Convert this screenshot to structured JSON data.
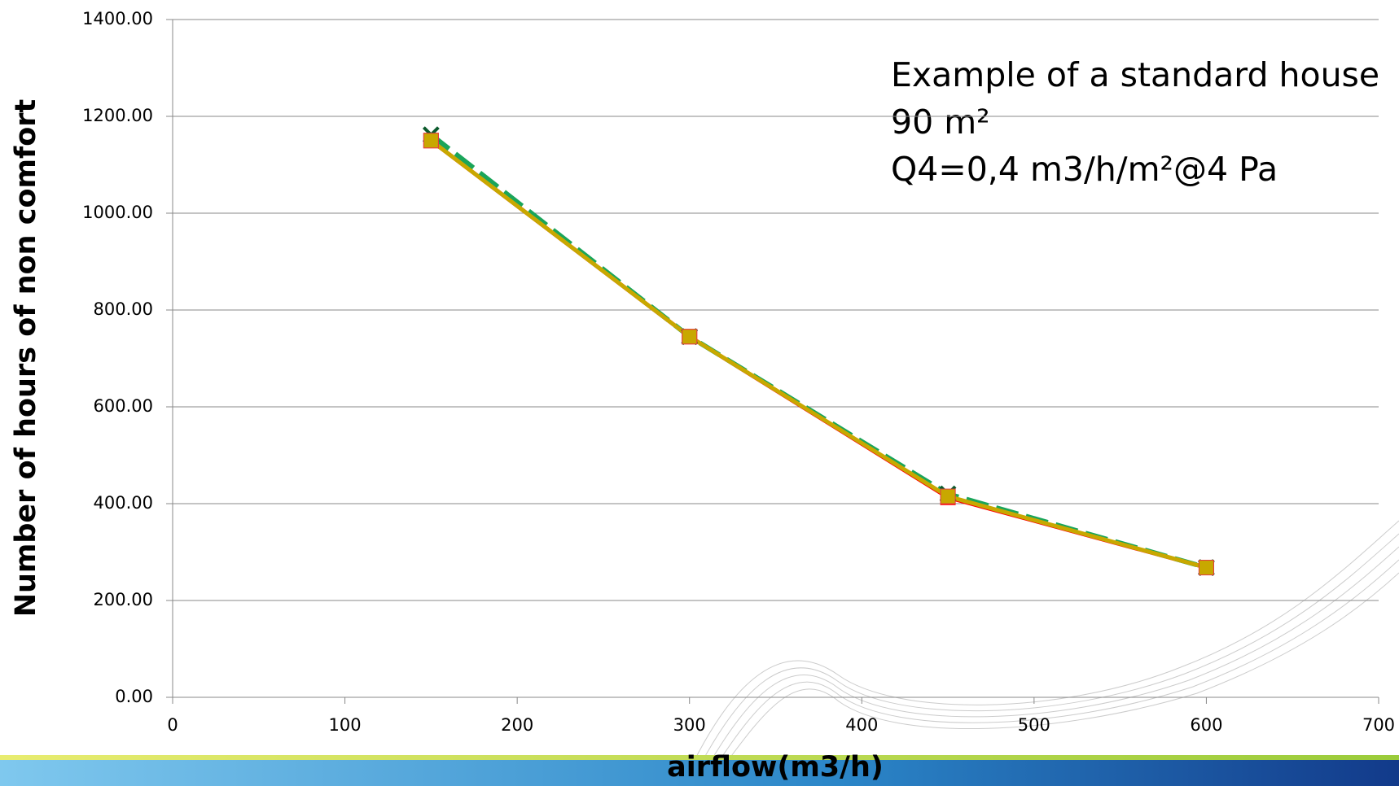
{
  "chart_data": {
    "type": "line",
    "x_label": "airflow(m3/h)",
    "y_label": "Number of hours of non comfort",
    "annotations": [
      "Example of a standard house",
      "90 m²",
      "Q4=0,4 m3/h/m²@4 Pa"
    ],
    "x": [
      150,
      300,
      450,
      600
    ],
    "series": [
      {
        "color": "#ff0000",
        "values": [
          1150,
          745,
          413,
          268
        ]
      },
      {
        "color": "#1aa55a",
        "values": [
          1162,
          745,
          420,
          268
        ]
      },
      {
        "color": "#c8a800",
        "values": [
          1150,
          745,
          415,
          268
        ]
      }
    ],
    "xlim": [
      0,
      700
    ],
    "xticks": [
      0,
      100,
      200,
      300,
      400,
      500,
      600,
      700
    ],
    "ylim": [
      0,
      1400
    ],
    "yticks": [
      {
        "value": 0,
        "label": "0.00"
      },
      {
        "value": 200,
        "label": "200.00"
      },
      {
        "value": 400,
        "label": "400.00"
      },
      {
        "value": 600,
        "label": "600.00"
      },
      {
        "value": 800,
        "label": "800.00"
      },
      {
        "value": 1000,
        "label": "1000.00"
      },
      {
        "value": 1200,
        "label": "1200.00"
      },
      {
        "value": 1400,
        "label": "1400.00"
      }
    ],
    "grid": true
  }
}
